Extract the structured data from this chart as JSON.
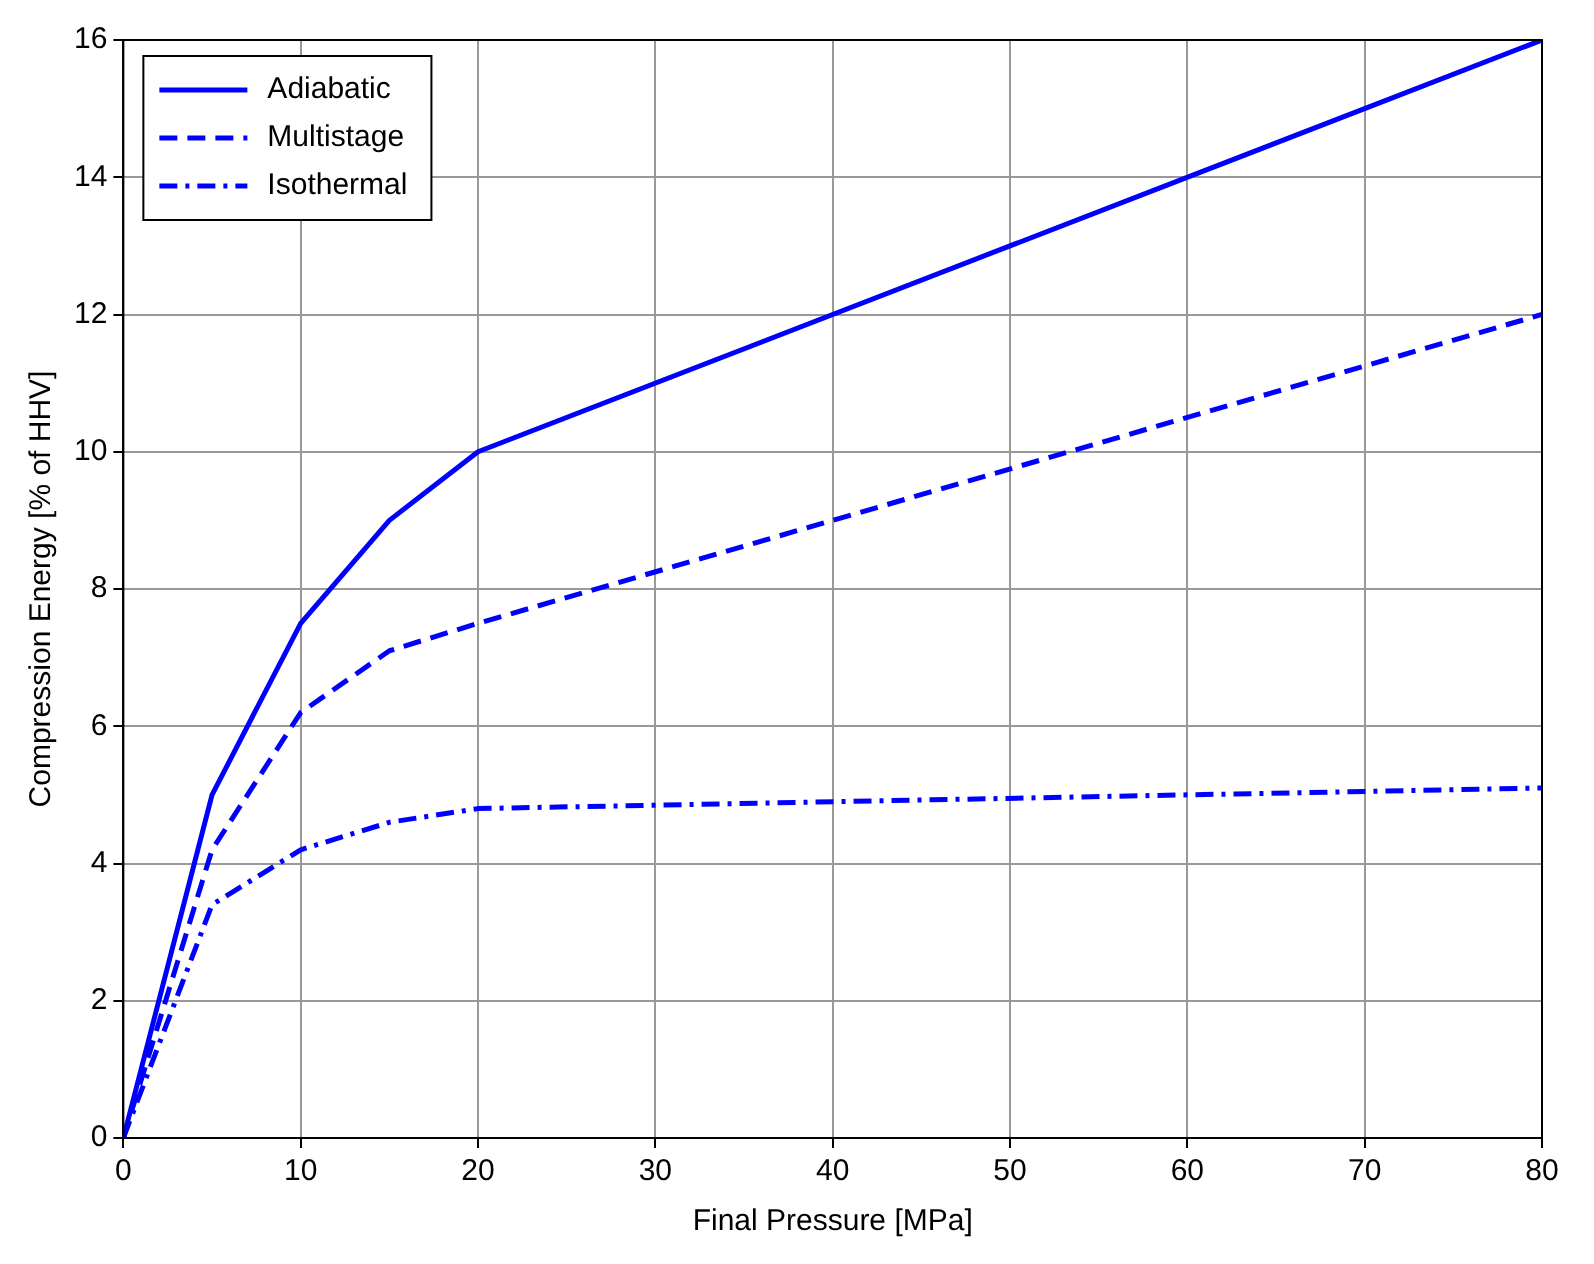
{
  "chart_data": {
    "type": "line",
    "xlabel": "Final Pressure [MPa]",
    "ylabel": "Compression Energy [% of HHV]",
    "x": [
      0,
      5,
      10,
      15,
      20,
      80
    ],
    "series": [
      {
        "name": "Adiabatic",
        "color": "#0000ff",
        "line_style": "solid",
        "values": [
          0,
          5,
          7.5,
          9,
          10,
          16
        ]
      },
      {
        "name": "Multistage",
        "color": "#0000ff",
        "line_style": "dashed",
        "values": [
          0,
          4.2,
          6.2,
          7.1,
          7.5,
          12
        ]
      },
      {
        "name": "Isothermal",
        "color": "#0000ff",
        "line_style": "dashdot",
        "values": [
          0,
          3.4,
          4.2,
          4.6,
          4.8,
          5.1
        ]
      }
    ],
    "xlim": [
      0,
      80
    ],
    "xticks": [
      0,
      10,
      20,
      30,
      40,
      50,
      60,
      70,
      80
    ],
    "ylim": [
      0,
      16
    ],
    "yticks": [
      0,
      2,
      4,
      6,
      8,
      10,
      12,
      14,
      16
    ],
    "grid": true,
    "legend": "top left",
    "marker": "none"
  }
}
